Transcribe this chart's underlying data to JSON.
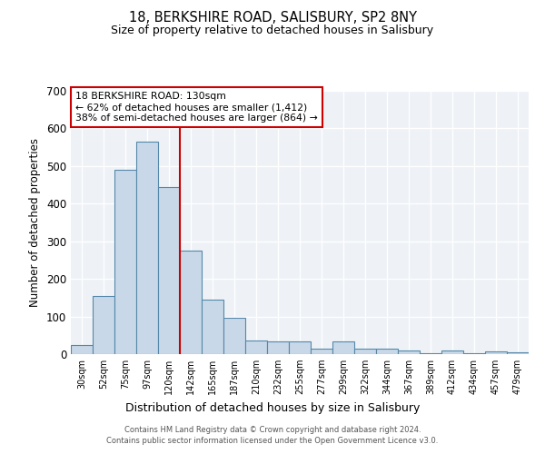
{
  "title1": "18, BERKSHIRE ROAD, SALISBURY, SP2 8NY",
  "title2": "Size of property relative to detached houses in Salisbury",
  "xlabel": "Distribution of detached houses by size in Salisbury",
  "ylabel": "Number of detached properties",
  "categories": [
    "30sqm",
    "52sqm",
    "75sqm",
    "97sqm",
    "120sqm",
    "142sqm",
    "165sqm",
    "187sqm",
    "210sqm",
    "232sqm",
    "255sqm",
    "277sqm",
    "299sqm",
    "322sqm",
    "344sqm",
    "367sqm",
    "389sqm",
    "412sqm",
    "434sqm",
    "457sqm",
    "479sqm"
  ],
  "values": [
    25,
    155,
    490,
    565,
    445,
    275,
    145,
    97,
    37,
    35,
    35,
    15,
    35,
    15,
    15,
    10,
    2,
    10,
    2,
    8,
    5
  ],
  "bar_color": "#c8d8e8",
  "bar_edge_color": "#5588aa",
  "vline_x": 4.5,
  "vline_color": "#cc0000",
  "ylim": [
    0,
    700
  ],
  "yticks": [
    0,
    100,
    200,
    300,
    400,
    500,
    600,
    700
  ],
  "annotation_title": "18 BERKSHIRE ROAD: 130sqm",
  "annotation_line1": "← 62% of detached houses are smaller (1,412)",
  "annotation_line2": "38% of semi-detached houses are larger (864) →",
  "annotation_box_color": "#cc0000",
  "footer1": "Contains HM Land Registry data © Crown copyright and database right 2024.",
  "footer2": "Contains public sector information licensed under the Open Government Licence v3.0.",
  "bg_color": "#eef2f6"
}
